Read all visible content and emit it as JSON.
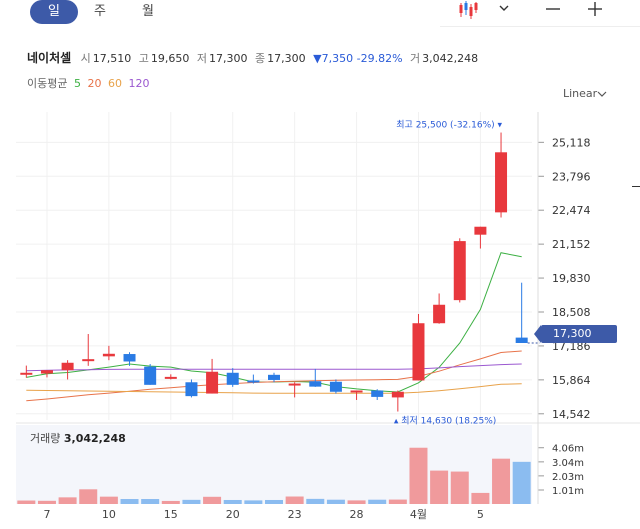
{
  "tabs": [
    {
      "label": "일",
      "active": true
    },
    {
      "label": "주",
      "active": false
    },
    {
      "label": "월",
      "active": false
    }
  ],
  "stock": {
    "name": "네이처셀",
    "open_label": "시",
    "open": "17,510",
    "high_label": "고",
    "high": "19,650",
    "low_label": "저",
    "low": "17,300",
    "close_label": "종",
    "close": "17,300",
    "change": "▼7,350 -29.82%",
    "volume_label": "거",
    "volume": "3,042,248"
  },
  "ma": {
    "label": "이동평균",
    "periods": [
      {
        "label": "5",
        "color": "#3cb043"
      },
      {
        "label": "20",
        "color": "#e8734a"
      },
      {
        "label": "60",
        "color": "#e8a24a"
      },
      {
        "label": "120",
        "color": "#9b59d0"
      }
    ]
  },
  "scale_label": "Linear",
  "current_price": "17,300",
  "max_annotation": "최고 25,500 (-32.16%)",
  "min_annotation": "최저 14,630 (18.25%)",
  "volume_title": {
    "label": "거래량",
    "value": "3,042,248"
  },
  "colors": {
    "up": "#e8383d",
    "down": "#2a7be4",
    "accent": "#3d5aa8"
  },
  "chart_data": {
    "type": "candlestick",
    "y_ticks": [
      "25,118",
      "23,796",
      "22,474",
      "21,152",
      "19,830",
      "18,508",
      "17,186",
      "15,864",
      "14,542"
    ],
    "ylim": [
      14300,
      26300
    ],
    "x_tick_labels": [
      {
        "index": 1,
        "label": "7"
      },
      {
        "index": 4,
        "label": "10"
      },
      {
        "index": 7,
        "label": "15"
      },
      {
        "index": 10,
        "label": "20"
      },
      {
        "index": 13,
        "label": "23"
      },
      {
        "index": 16,
        "label": "28"
      },
      {
        "index": 19,
        "label": "4월"
      },
      {
        "index": 22,
        "label": "5"
      }
    ],
    "candles": [
      {
        "o": 16140,
        "h": 16420,
        "l": 15950,
        "c": 16140
      },
      {
        "o": 16110,
        "h": 16240,
        "l": 15960,
        "c": 16240
      },
      {
        "o": 16240,
        "h": 16630,
        "l": 15880,
        "c": 16530
      },
      {
        "o": 16620,
        "h": 17650,
        "l": 16410,
        "c": 16670
      },
      {
        "o": 16780,
        "h": 17190,
        "l": 16630,
        "c": 16880
      },
      {
        "o": 16870,
        "h": 16940,
        "l": 16410,
        "c": 16580
      },
      {
        "o": 16380,
        "h": 16480,
        "l": 15670,
        "c": 15670
      },
      {
        "o": 15980,
        "h": 16080,
        "l": 15880,
        "c": 15980
      },
      {
        "o": 15770,
        "h": 15880,
        "l": 15180,
        "c": 15230
      },
      {
        "o": 15330,
        "h": 16680,
        "l": 15330,
        "c": 16180
      },
      {
        "o": 16140,
        "h": 16320,
        "l": 15590,
        "c": 15670
      },
      {
        "o": 15840,
        "h": 16070,
        "l": 15720,
        "c": 15770
      },
      {
        "o": 16060,
        "h": 16140,
        "l": 15770,
        "c": 15860
      },
      {
        "o": 15670,
        "h": 15770,
        "l": 15180,
        "c": 15720
      },
      {
        "o": 15810,
        "h": 16290,
        "l": 15590,
        "c": 15600
      },
      {
        "o": 15790,
        "h": 15880,
        "l": 15330,
        "c": 15400
      },
      {
        "o": 15410,
        "h": 15450,
        "l": 15080,
        "c": 15450
      },
      {
        "o": 15450,
        "h": 15500,
        "l": 15080,
        "c": 15200
      },
      {
        "o": 15180,
        "h": 15450,
        "l": 14630,
        "c": 15400
      },
      {
        "o": 15840,
        "h": 18430,
        "l": 15840,
        "c": 18070
      },
      {
        "o": 18070,
        "h": 19230,
        "l": 18050,
        "c": 18790
      },
      {
        "o": 18970,
        "h": 21380,
        "l": 18880,
        "c": 21270
      },
      {
        "o": 21520,
        "h": 21830,
        "l": 20980,
        "c": 21830
      },
      {
        "o": 22390,
        "h": 25500,
        "l": 22190,
        "c": 24730
      },
      {
        "o": 17510,
        "h": 19650,
        "l": 17300,
        "c": 17300
      }
    ],
    "volume_ticks": [
      "4.06m",
      "3.04m",
      "2.03m",
      "1.01m"
    ],
    "volume_max": 5700000,
    "volumes": [
      250000,
      230000,
      480000,
      1060000,
      530000,
      360000,
      360000,
      220000,
      300000,
      520000,
      290000,
      260000,
      290000,
      540000,
      370000,
      310000,
      260000,
      310000,
      320000,
      4060000,
      2410000,
      2340000,
      800000,
      3270000,
      3042248
    ],
    "ma_lines": [
      {
        "period": "5",
        "color": "#3cb043",
        "values": [
          15960,
          16100,
          16150,
          16250,
          16360,
          16480,
          16400,
          16360,
          16210,
          16140,
          15970,
          15780,
          15780,
          15800,
          15770,
          15600,
          15510,
          15440,
          15390,
          15750,
          16350,
          17300,
          18610,
          20820,
          20660
        ]
      },
      {
        "period": "20",
        "color": "#e8734a",
        "values": [
          15050,
          15120,
          15200,
          15280,
          15350,
          15420,
          15500,
          15560,
          15620,
          15670,
          15720,
          15760,
          15790,
          15810,
          15830,
          15850,
          15860,
          15870,
          15880,
          16000,
          16200,
          16450,
          16680,
          16930,
          16990
        ]
      },
      {
        "period": "60",
        "color": "#e8a24a",
        "values": [
          15460,
          15450,
          15440,
          15430,
          15420,
          15410,
          15400,
          15390,
          15380,
          15370,
          15360,
          15350,
          15340,
          15340,
          15340,
          15340,
          15340,
          15340,
          15340,
          15380,
          15440,
          15520,
          15600,
          15690,
          15710
        ]
      },
      {
        "period": "120",
        "color": "#9b59d0",
        "values": [
          16220,
          16240,
          16250,
          16260,
          16270,
          16280,
          16280,
          16280,
          16280,
          16280,
          16280,
          16280,
          16280,
          16280,
          16280,
          16280,
          16280,
          16280,
          16280,
          16290,
          16330,
          16380,
          16420,
          16460,
          16480
        ]
      }
    ]
  }
}
